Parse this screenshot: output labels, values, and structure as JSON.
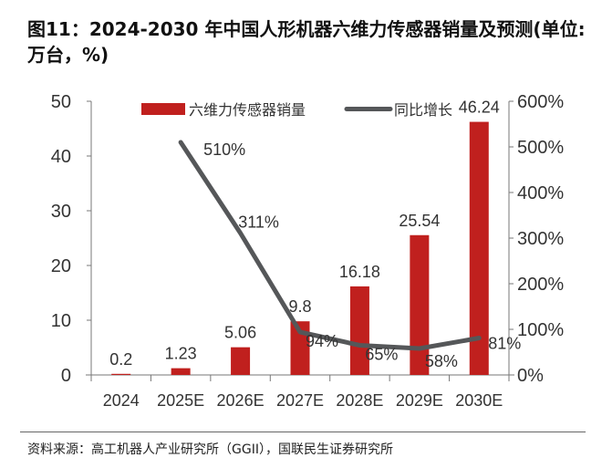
{
  "title": "图11：2024-2030 年中国人形机器六维力传感器销量及预测(单位:万台，%)",
  "source": "资料来源：高工机器人产业研究所（GGII），国联民生证券研究所",
  "chart_data": {
    "type": "bar+line",
    "categories": [
      "2024",
      "2025E",
      "2026E",
      "2027E",
      "2028E",
      "2029E",
      "2030E"
    ],
    "series": [
      {
        "name": "六维力传感器销量",
        "type": "bar",
        "axis": "left",
        "color": "#c0201e",
        "values": [
          0.2,
          1.23,
          5.06,
          9.8,
          16.18,
          25.54,
          46.24
        ],
        "labels": [
          "0.2",
          "1.23",
          "5.06",
          "9.8",
          "16.18",
          "25.54",
          "46.24"
        ]
      },
      {
        "name": "同比增长",
        "type": "line",
        "axis": "right",
        "color": "#555759",
        "values": [
          null,
          510,
          311,
          94,
          65,
          58,
          81
        ],
        "labels": [
          "",
          "510%",
          "311%",
          "94%",
          "65%",
          "58%",
          "81%"
        ]
      }
    ],
    "left_axis": {
      "ylim": [
        0,
        50
      ],
      "ticks": [
        "0",
        "10",
        "20",
        "30",
        "40",
        "50"
      ]
    },
    "right_axis": {
      "ylim": [
        0,
        600
      ],
      "ticks": [
        "0%",
        "100%",
        "200%",
        "300%",
        "400%",
        "500%",
        "600%"
      ]
    },
    "legend": "top",
    "grid": false
  }
}
